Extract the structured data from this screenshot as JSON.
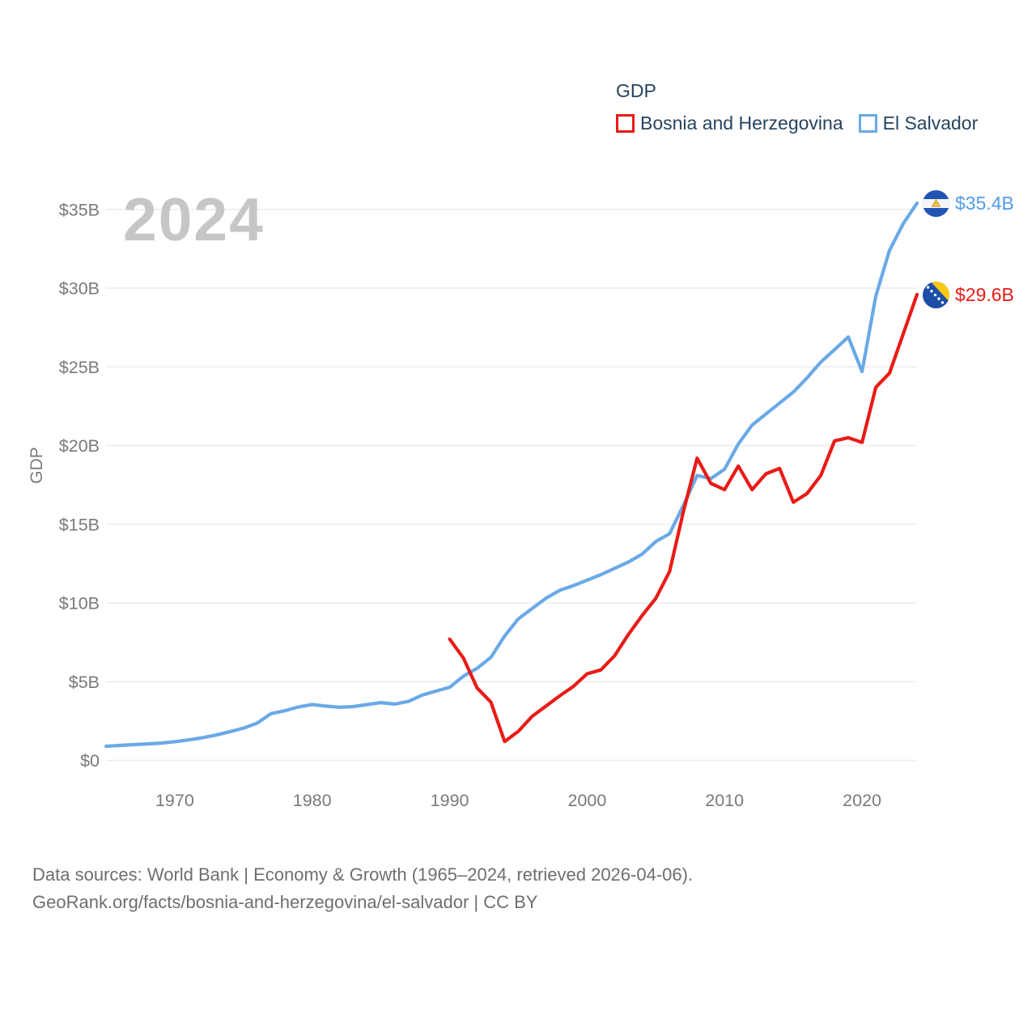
{
  "watermark_year": "2024",
  "legend": {
    "title": "GDP",
    "items": [
      {
        "label": "Bosnia and Herzegovina",
        "color": "#e81c17"
      },
      {
        "label": "El Salvador",
        "color": "#6aa9e6"
      }
    ]
  },
  "end_labels": [
    {
      "series": "El Salvador",
      "text": "$35.4B",
      "color": "#4f9ce8",
      "flag": "el-salvador-flag"
    },
    {
      "series": "Bosnia and Herzegovina",
      "text": "$29.6B",
      "color": "#e81c17",
      "flag": "bosnia-and-herzegovina-flag"
    }
  ],
  "footer": {
    "line1": "Data sources: World Bank | Economy & Growth (1965–2024, retrieved 2026-04-06).",
    "line2": "GeoRank.org/facts/bosnia-and-herzegovina/el-salvador | CC BY"
  },
  "chart_data": {
    "type": "line",
    "title": "GDP",
    "ylabel": "GDP",
    "xlabel": "",
    "xlim": [
      1965,
      2024
    ],
    "ylim": [
      0,
      35
    ],
    "grid": "horizontal",
    "legend_position": "top-right",
    "units": "billions USD",
    "y_ticks": [
      {
        "value": 0,
        "label": "$0"
      },
      {
        "value": 5,
        "label": "$5B"
      },
      {
        "value": 10,
        "label": "$10B"
      },
      {
        "value": 15,
        "label": "$15B"
      },
      {
        "value": 20,
        "label": "$20B"
      },
      {
        "value": 25,
        "label": "$25B"
      },
      {
        "value": 30,
        "label": "$30B"
      },
      {
        "value": 35,
        "label": "$35B"
      }
    ],
    "x_ticks": [
      1970,
      1980,
      1990,
      2000,
      2010,
      2020
    ],
    "series": [
      {
        "name": "El Salvador",
        "color": "#6aa9e6",
        "end_value_label": "$35.4B",
        "x": [
          1965,
          1966,
          1967,
          1968,
          1969,
          1970,
          1971,
          1972,
          1973,
          1974,
          1975,
          1976,
          1977,
          1978,
          1979,
          1980,
          1981,
          1982,
          1983,
          1984,
          1985,
          1986,
          1987,
          1988,
          1989,
          1990,
          1991,
          1992,
          1993,
          1994,
          1995,
          1996,
          1997,
          1998,
          1999,
          2000,
          2001,
          2002,
          2003,
          2004,
          2005,
          2006,
          2007,
          2008,
          2009,
          2010,
          2011,
          2012,
          2013,
          2014,
          2015,
          2016,
          2017,
          2018,
          2019,
          2020,
          2021,
          2022,
          2023,
          2024
        ],
        "values": [
          0.9,
          0.95,
          1.0,
          1.05,
          1.1,
          1.19,
          1.3,
          1.44,
          1.61,
          1.82,
          2.05,
          2.37,
          2.97,
          3.15,
          3.4,
          3.55,
          3.45,
          3.38,
          3.42,
          3.55,
          3.67,
          3.58,
          3.75,
          4.15,
          4.4,
          4.65,
          5.35,
          5.85,
          6.55,
          7.9,
          9.0,
          9.65,
          10.3,
          10.8,
          11.1,
          11.45,
          11.8,
          12.2,
          12.6,
          13.1,
          13.9,
          14.4,
          16.2,
          18.1,
          17.9,
          18.5,
          20.1,
          21.3,
          22.0,
          22.7,
          23.4,
          24.3,
          25.3,
          26.1,
          26.9,
          24.7,
          29.5,
          32.4,
          34.1,
          35.4
        ]
      },
      {
        "name": "Bosnia and Herzegovina",
        "color": "#e81c17",
        "end_value_label": "$29.6B",
        "x": [
          1990,
          1991,
          1992,
          1993,
          1994,
          1995,
          1996,
          1997,
          1998,
          1999,
          2000,
          2001,
          2002,
          2003,
          2004,
          2005,
          2006,
          2007,
          2008,
          2009,
          2010,
          2011,
          2012,
          2013,
          2014,
          2015,
          2016,
          2017,
          2018,
          2019,
          2020,
          2021,
          2022,
          2023,
          2024
        ],
        "values": [
          7.7,
          6.5,
          4.6,
          3.7,
          1.2,
          1.85,
          2.8,
          3.45,
          4.1,
          4.7,
          5.5,
          5.75,
          6.65,
          8.0,
          9.2,
          10.3,
          12.0,
          15.8,
          19.2,
          17.6,
          17.2,
          18.7,
          17.2,
          18.2,
          18.55,
          16.4,
          16.95,
          18.1,
          20.3,
          20.5,
          20.2,
          23.7,
          24.6,
          27.1,
          29.6
        ]
      }
    ]
  }
}
